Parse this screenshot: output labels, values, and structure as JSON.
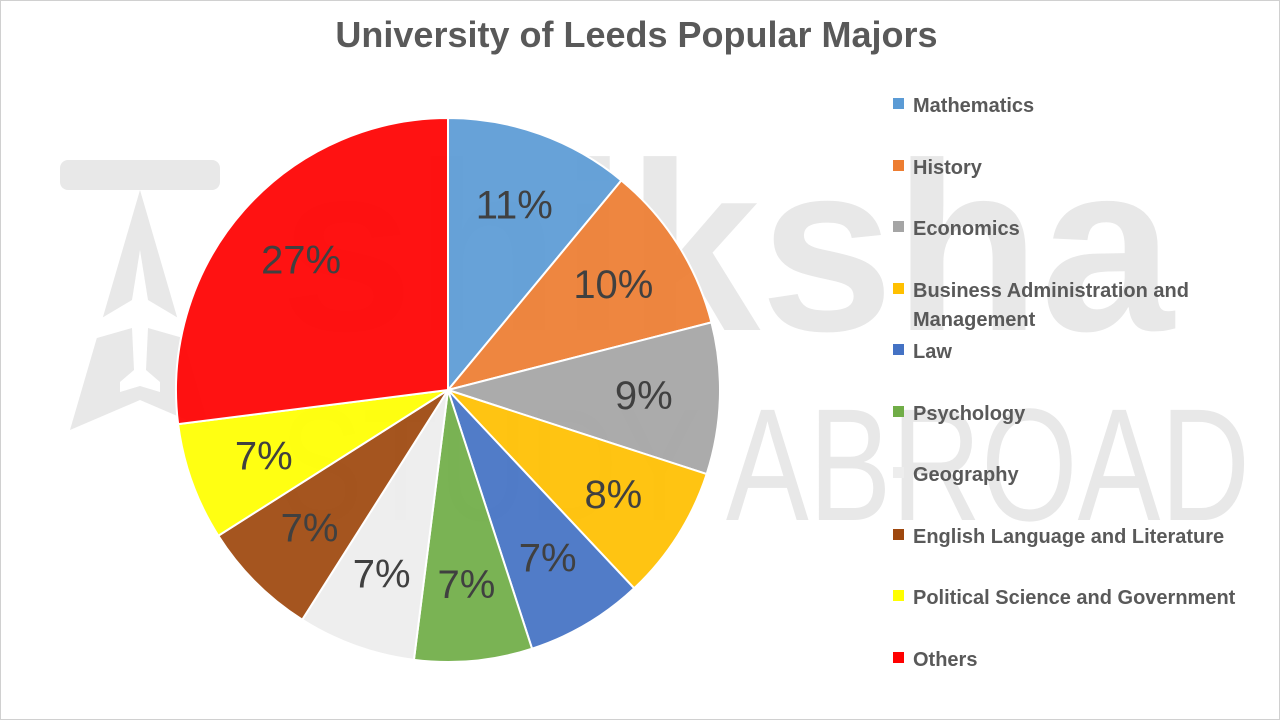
{
  "chart_data": {
    "type": "pie",
    "title": "University of Leeds Popular Majors",
    "legend_position": "right",
    "slices": [
      {
        "name": "Mathematics",
        "value": 11,
        "label": "11%",
        "color": "#5B9BD5"
      },
      {
        "name": "History",
        "value": 10,
        "label": "10%",
        "color": "#ED7D31"
      },
      {
        "name": "Economics",
        "value": 9,
        "label": "9%",
        "color": "#A5A5A5"
      },
      {
        "name": "Business Administration and Management",
        "value": 8,
        "label": "8%",
        "color": "#FFC000"
      },
      {
        "name": "Law",
        "value": 7,
        "label": "7%",
        "color": "#4472C4"
      },
      {
        "name": "Psychology",
        "value": 7,
        "label": "7%",
        "color": "#70AD47"
      },
      {
        "name": "Geography",
        "value": 7,
        "label": "7%",
        "color": "#EDEDED"
      },
      {
        "name": "English Language and Literature",
        "value": 7,
        "label": "7%",
        "color": "#9E480E"
      },
      {
        "name": "Political Science and Government",
        "value": 7,
        "label": "7%",
        "color": "#FFFF00"
      },
      {
        "name": "Others",
        "value": 27,
        "label": "27%",
        "color": "#FF0000"
      }
    ]
  },
  "watermark_text": {
    "brand": "shiksha",
    "tagline": "STUDY ABROAD"
  }
}
